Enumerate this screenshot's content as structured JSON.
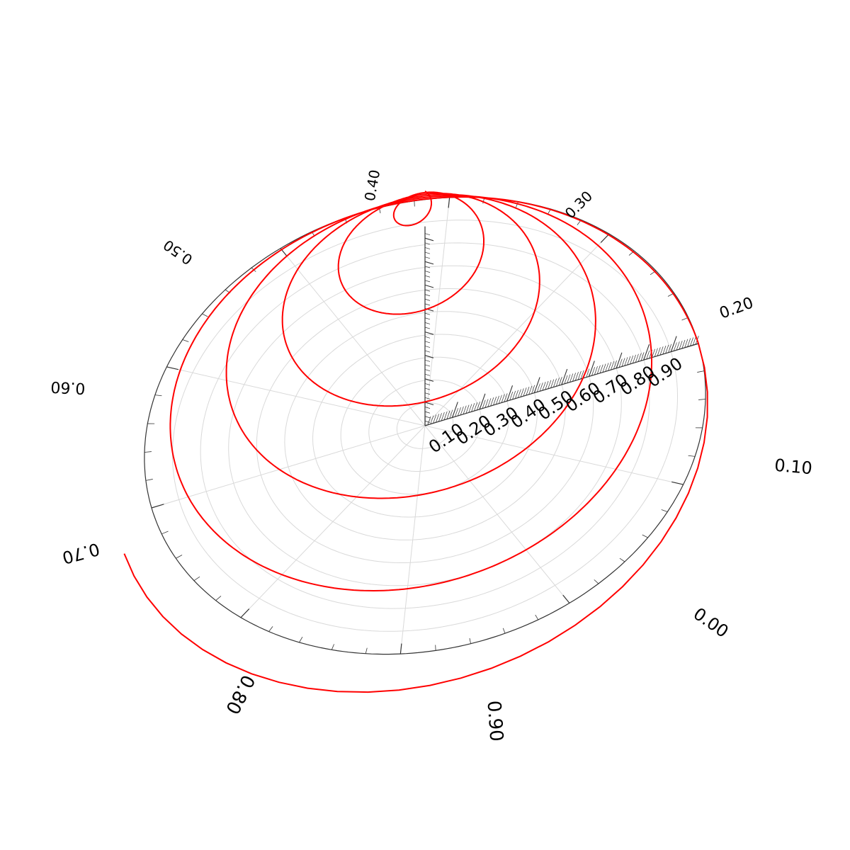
{
  "chart_data": {
    "type": "line",
    "projection": "3d-polar",
    "grid": true,
    "angular_axis": {
      "range": [
        0,
        1
      ],
      "direction": "counterclockwise",
      "tick_labels": [
        "0.00",
        "0.10",
        "0.20",
        "0.30",
        "0.40",
        "0.50",
        "0.60",
        "0.70",
        "0.80",
        "0.90"
      ]
    },
    "radial_axis": {
      "range": [
        0,
        1
      ],
      "tick_labels": [
        "0.10",
        "0.20",
        "0.30",
        "0.40",
        "0.50",
        "0.60",
        "0.70",
        "0.80",
        "0.90"
      ]
    },
    "vertical_axis": {
      "range": [
        0,
        1
      ]
    },
    "series": [
      {
        "color": "#ff0000",
        "turns": 5,
        "radius": [
          1.0,
          0.0
        ],
        "z": [
          0.0,
          1.0
        ],
        "angle_start": 0.0
      }
    ]
  }
}
